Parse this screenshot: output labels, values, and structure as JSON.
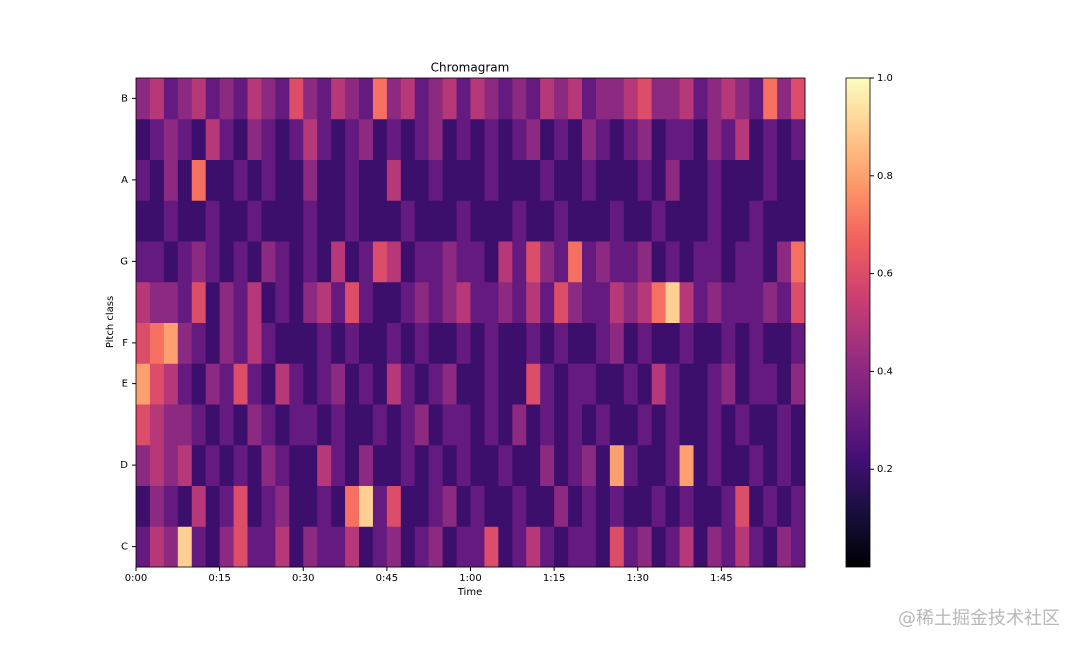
{
  "chart_data": {
    "type": "heatmap",
    "title": "Chromagram",
    "xlabel": "Time",
    "ylabel": "Pitch class",
    "colormap": "magma",
    "categories": [
      "C",
      null,
      "D",
      null,
      "E",
      "F",
      null,
      "G",
      null,
      "A",
      null,
      "B"
    ],
    "xlim": [
      0,
      120
    ],
    "xticks": [
      {
        "value": 0,
        "label": "0:00"
      },
      {
        "value": 15,
        "label": "0:15"
      },
      {
        "value": 30,
        "label": "0:30"
      },
      {
        "value": 45,
        "label": "0:45"
      },
      {
        "value": 60,
        "label": "1:00"
      },
      {
        "value": 75,
        "label": "1:15"
      },
      {
        "value": 90,
        "label": "1:30"
      },
      {
        "value": 105,
        "label": "1:45"
      }
    ],
    "clim": [
      0,
      1
    ],
    "cticks": [
      0.2,
      0.4,
      0.6,
      0.8,
      {
        "value": 1,
        "label": "1.0"
      }
    ],
    "z": [
      [
        0.3,
        0.5,
        0.4,
        0.9,
        0.3,
        0.2,
        0.4,
        0.6,
        0.3,
        0.3,
        0.5,
        0.2,
        0.4,
        0.3,
        0.3,
        0.5,
        0.2,
        0.3,
        0.4,
        0.2,
        0.3,
        0.4,
        0.2,
        0.3,
        0.3,
        0.6,
        0.2,
        0.3,
        0.5,
        0.3,
        0.2,
        0.3,
        0.3,
        0.2,
        0.6,
        0.3,
        0.4,
        0.2,
        0.3,
        0.5,
        0.2,
        0.4,
        0.3,
        0.5,
        0.3,
        0.2,
        0.4,
        0.3
      ],
      [
        0.2,
        0.4,
        0.3,
        0.2,
        0.5,
        0.2,
        0.3,
        0.6,
        0.2,
        0.3,
        0.4,
        0.2,
        0.2,
        0.3,
        0.2,
        0.7,
        0.9,
        0.3,
        0.6,
        0.2,
        0.2,
        0.3,
        0.4,
        0.2,
        0.3,
        0.2,
        0.2,
        0.3,
        0.2,
        0.2,
        0.4,
        0.2,
        0.3,
        0.2,
        0.3,
        0.2,
        0.2,
        0.3,
        0.2,
        0.3,
        0.2,
        0.2,
        0.3,
        0.6,
        0.2,
        0.3,
        0.2,
        0.3
      ],
      [
        0.4,
        0.5,
        0.4,
        0.5,
        0.2,
        0.3,
        0.2,
        0.3,
        0.2,
        0.4,
        0.3,
        0.2,
        0.2,
        0.5,
        0.3,
        0.2,
        0.4,
        0.2,
        0.2,
        0.3,
        0.2,
        0.3,
        0.2,
        0.3,
        0.2,
        0.2,
        0.3,
        0.2,
        0.2,
        0.4,
        0.2,
        0.3,
        0.4,
        0.2,
        0.8,
        0.3,
        0.2,
        0.2,
        0.3,
        0.8,
        0.2,
        0.3,
        0.2,
        0.2,
        0.3,
        0.2,
        0.3,
        0.2
      ],
      [
        0.6,
        0.5,
        0.4,
        0.4,
        0.3,
        0.2,
        0.3,
        0.2,
        0.4,
        0.3,
        0.2,
        0.3,
        0.3,
        0.2,
        0.3,
        0.2,
        0.2,
        0.3,
        0.2,
        0.3,
        0.4,
        0.2,
        0.3,
        0.3,
        0.2,
        0.3,
        0.2,
        0.4,
        0.2,
        0.3,
        0.2,
        0.3,
        0.2,
        0.3,
        0.2,
        0.2,
        0.3,
        0.2,
        0.3,
        0.2,
        0.2,
        0.3,
        0.2,
        0.3,
        0.2,
        0.2,
        0.3,
        0.2
      ],
      [
        0.8,
        0.6,
        0.5,
        0.3,
        0.2,
        0.4,
        0.3,
        0.6,
        0.3,
        0.2,
        0.5,
        0.3,
        0.2,
        0.3,
        0.4,
        0.2,
        0.3,
        0.2,
        0.5,
        0.3,
        0.2,
        0.3,
        0.4,
        0.2,
        0.2,
        0.3,
        0.2,
        0.2,
        0.6,
        0.3,
        0.2,
        0.3,
        0.3,
        0.2,
        0.2,
        0.3,
        0.2,
        0.5,
        0.3,
        0.2,
        0.2,
        0.3,
        0.4,
        0.2,
        0.3,
        0.3,
        0.2,
        0.4
      ],
      [
        0.6,
        0.7,
        0.8,
        0.4,
        0.3,
        0.2,
        0.4,
        0.3,
        0.5,
        0.3,
        0.2,
        0.2,
        0.2,
        0.3,
        0.2,
        0.3,
        0.2,
        0.2,
        0.3,
        0.2,
        0.3,
        0.2,
        0.2,
        0.3,
        0.2,
        0.3,
        0.2,
        0.2,
        0.3,
        0.2,
        0.3,
        0.2,
        0.2,
        0.3,
        0.4,
        0.2,
        0.3,
        0.2,
        0.2,
        0.3,
        0.2,
        0.2,
        0.3,
        0.2,
        0.3,
        0.2,
        0.2,
        0.3
      ],
      [
        0.5,
        0.4,
        0.4,
        0.3,
        0.6,
        0.2,
        0.4,
        0.3,
        0.5,
        0.2,
        0.3,
        0.2,
        0.4,
        0.5,
        0.3,
        0.6,
        0.3,
        0.2,
        0.2,
        0.3,
        0.4,
        0.3,
        0.4,
        0.5,
        0.3,
        0.3,
        0.4,
        0.3,
        0.5,
        0.3,
        0.6,
        0.4,
        0.3,
        0.3,
        0.5,
        0.4,
        0.5,
        0.7,
        0.9,
        0.5,
        0.3,
        0.4,
        0.3,
        0.3,
        0.3,
        0.4,
        0.3,
        0.6
      ],
      [
        0.3,
        0.3,
        0.2,
        0.3,
        0.4,
        0.3,
        0.2,
        0.3,
        0.2,
        0.4,
        0.3,
        0.2,
        0.3,
        0.2,
        0.5,
        0.2,
        0.3,
        0.6,
        0.5,
        0.2,
        0.3,
        0.3,
        0.4,
        0.3,
        0.3,
        0.2,
        0.5,
        0.3,
        0.6,
        0.4,
        0.3,
        0.7,
        0.3,
        0.4,
        0.3,
        0.3,
        0.4,
        0.2,
        0.3,
        0.2,
        0.3,
        0.3,
        0.2,
        0.3,
        0.3,
        0.2,
        0.4,
        0.7
      ],
      [
        0.2,
        0.2,
        0.3,
        0.2,
        0.2,
        0.3,
        0.2,
        0.2,
        0.3,
        0.2,
        0.2,
        0.2,
        0.3,
        0.2,
        0.2,
        0.3,
        0.2,
        0.2,
        0.2,
        0.3,
        0.2,
        0.2,
        0.2,
        0.3,
        0.2,
        0.2,
        0.2,
        0.3,
        0.2,
        0.2,
        0.3,
        0.2,
        0.2,
        0.2,
        0.3,
        0.2,
        0.2,
        0.3,
        0.2,
        0.2,
        0.2,
        0.3,
        0.2,
        0.2,
        0.3,
        0.2,
        0.2,
        0.2
      ],
      [
        0.3,
        0.2,
        0.4,
        0.2,
        0.7,
        0.2,
        0.2,
        0.3,
        0.2,
        0.3,
        0.2,
        0.2,
        0.4,
        0.2,
        0.2,
        0.3,
        0.2,
        0.2,
        0.5,
        0.2,
        0.2,
        0.3,
        0.2,
        0.2,
        0.2,
        0.3,
        0.2,
        0.2,
        0.2,
        0.3,
        0.2,
        0.2,
        0.3,
        0.2,
        0.2,
        0.2,
        0.3,
        0.2,
        0.4,
        0.2,
        0.2,
        0.3,
        0.2,
        0.2,
        0.2,
        0.3,
        0.2,
        0.2
      ],
      [
        0.2,
        0.3,
        0.4,
        0.3,
        0.2,
        0.5,
        0.3,
        0.2,
        0.4,
        0.3,
        0.2,
        0.3,
        0.5,
        0.3,
        0.2,
        0.3,
        0.4,
        0.2,
        0.3,
        0.2,
        0.3,
        0.4,
        0.2,
        0.3,
        0.2,
        0.3,
        0.2,
        0.3,
        0.4,
        0.2,
        0.3,
        0.2,
        0.4,
        0.3,
        0.2,
        0.3,
        0.4,
        0.2,
        0.3,
        0.3,
        0.2,
        0.4,
        0.3,
        0.5,
        0.2,
        0.3,
        0.2,
        0.3
      ],
      [
        0.4,
        0.5,
        0.3,
        0.4,
        0.5,
        0.3,
        0.4,
        0.3,
        0.5,
        0.4,
        0.3,
        0.6,
        0.4,
        0.3,
        0.5,
        0.4,
        0.3,
        0.7,
        0.4,
        0.5,
        0.3,
        0.4,
        0.5,
        0.3,
        0.5,
        0.4,
        0.3,
        0.4,
        0.3,
        0.5,
        0.4,
        0.5,
        0.3,
        0.4,
        0.4,
        0.5,
        0.6,
        0.4,
        0.4,
        0.5,
        0.3,
        0.4,
        0.5,
        0.4,
        0.3,
        0.7,
        0.4,
        0.6
      ]
    ]
  },
  "watermark": "@稀土掘金技术社区"
}
